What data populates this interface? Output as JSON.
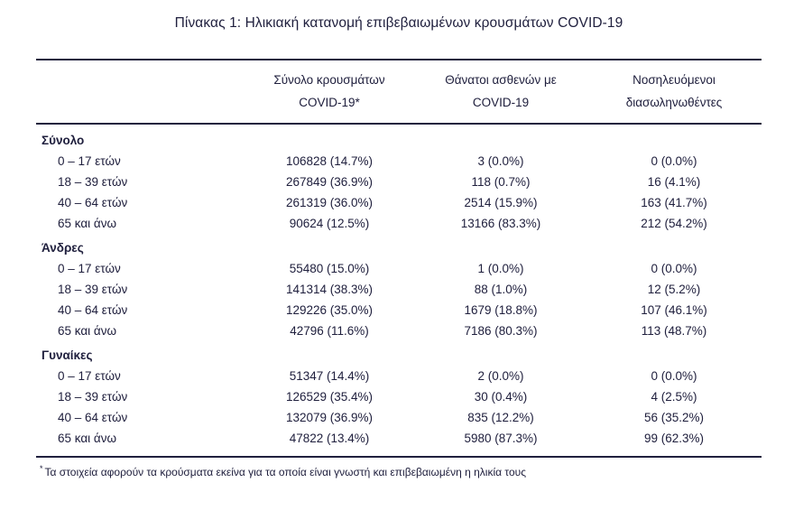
{
  "page": {
    "title": "Πίνακας 1: Ηλικιακή κατανομή επιβεβαιωμένων κρουσμάτων COVID-19",
    "footnote": {
      "marker": "*",
      "text": "Τα στοιχεία αφορούν τα κρούσματα εκείνα για τα οποία είναι γνωστή και επιβεβαιωμένη η ηλικία τους"
    }
  },
  "colors": {
    "ink": "#20203e",
    "background": "#ffffff"
  },
  "table": {
    "column_headers": [
      {
        "line1": "Σύνολο κρουσμάτων",
        "line2": "COVID-19*"
      },
      {
        "line1": "Θάνατοι ασθενών με",
        "line2": "COVID-19"
      },
      {
        "line1": "Νοσηλευόμενοι",
        "line2": "διασωληνωθέντες"
      }
    ],
    "sections": [
      {
        "label": "Σύνολο",
        "rows": [
          {
            "age": "0 – 17 ετών",
            "cases": "106828 (14.7%)",
            "deaths": "3 (0.0%)",
            "intubated": "0 (0.0%)"
          },
          {
            "age": "18 – 39 ετών",
            "cases": "267849 (36.9%)",
            "deaths": "118 (0.7%)",
            "intubated": "16 (4.1%)"
          },
          {
            "age": "40 – 64 ετών",
            "cases": "261319 (36.0%)",
            "deaths": "2514 (15.9%)",
            "intubated": "163 (41.7%)"
          },
          {
            "age": "65 και άνω",
            "cases": "90624 (12.5%)",
            "deaths": "13166 (83.3%)",
            "intubated": "212 (54.2%)"
          }
        ]
      },
      {
        "label": "Άνδρες",
        "rows": [
          {
            "age": "0 – 17 ετών",
            "cases": "55480 (15.0%)",
            "deaths": "1 (0.0%)",
            "intubated": "0 (0.0%)"
          },
          {
            "age": "18 – 39 ετών",
            "cases": "141314 (38.3%)",
            "deaths": "88 (1.0%)",
            "intubated": "12 (5.2%)"
          },
          {
            "age": "40 – 64 ετών",
            "cases": "129226 (35.0%)",
            "deaths": "1679 (18.8%)",
            "intubated": "107 (46.1%)"
          },
          {
            "age": "65 και άνω",
            "cases": "42796 (11.6%)",
            "deaths": "7186 (80.3%)",
            "intubated": "113 (48.7%)"
          }
        ]
      },
      {
        "label": "Γυναίκες",
        "rows": [
          {
            "age": "0 – 17 ετών",
            "cases": "51347 (14.4%)",
            "deaths": "2 (0.0%)",
            "intubated": "0 (0.0%)"
          },
          {
            "age": "18 – 39 ετών",
            "cases": "126529 (35.4%)",
            "deaths": "30 (0.4%)",
            "intubated": "4 (2.5%)"
          },
          {
            "age": "40 – 64 ετών",
            "cases": "132079 (36.9%)",
            "deaths": "835 (12.2%)",
            "intubated": "56 (35.2%)"
          },
          {
            "age": "65 και άνω",
            "cases": "47822 (13.4%)",
            "deaths": "5980 (87.3%)",
            "intubated": "99 (62.3%)"
          }
        ]
      }
    ]
  }
}
